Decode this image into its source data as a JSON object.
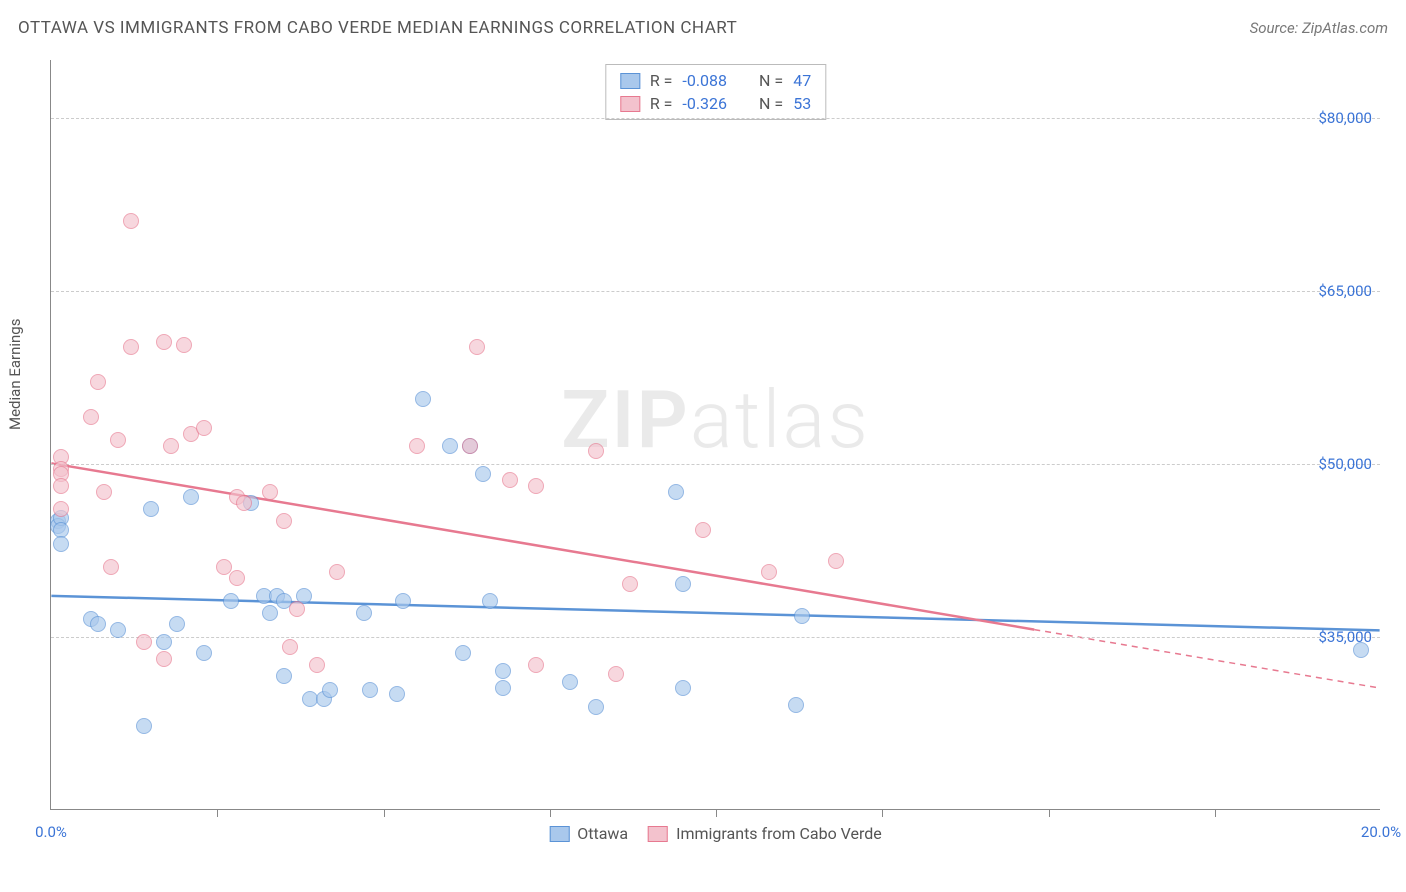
{
  "header": {
    "title": "OTTAWA VS IMMIGRANTS FROM CABO VERDE MEDIAN EARNINGS CORRELATION CHART",
    "source_prefix": "Source: ",
    "source_name": "ZipAtlas.com"
  },
  "chart": {
    "type": "scatter",
    "y_axis_label": "Median Earnings",
    "x_range": [
      0,
      20
    ],
    "y_range": [
      20000,
      85000
    ],
    "y_ticks": [
      {
        "v": 35000,
        "label": "$35,000"
      },
      {
        "v": 50000,
        "label": "$50,000"
      },
      {
        "v": 65000,
        "label": "$65,000"
      },
      {
        "v": 80000,
        "label": "$80,000"
      }
    ],
    "x_ticks_minor": [
      2.5,
      5.0,
      7.5,
      10.0,
      12.5,
      15.0,
      17.5
    ],
    "x_ticks_labeled": [
      {
        "v": 0,
        "label": "0.0%"
      },
      {
        "v": 20,
        "label": "20.0%"
      }
    ],
    "grid_color": "#cccccc",
    "background_color": "#ffffff",
    "series": [
      {
        "name": "Ottawa",
        "fill": "#a9c8ec",
        "stroke": "#5b93d6",
        "trend": {
          "y_at_x0": 38500,
          "y_at_x20": 35500,
          "solid_to_x": 20
        },
        "points": [
          [
            0.1,
            45000
          ],
          [
            0.1,
            44500
          ],
          [
            0.15,
            45200
          ],
          [
            0.15,
            44200
          ],
          [
            0.15,
            43000
          ],
          [
            0.6,
            36500
          ],
          [
            0.7,
            36000
          ],
          [
            1.5,
            46000
          ],
          [
            1.4,
            27200
          ],
          [
            1.0,
            35500
          ],
          [
            1.7,
            34500
          ],
          [
            1.9,
            36000
          ],
          [
            2.3,
            33500
          ],
          [
            2.1,
            47000
          ],
          [
            2.7,
            38000
          ],
          [
            3.0,
            46500
          ],
          [
            3.2,
            38500
          ],
          [
            3.3,
            37000
          ],
          [
            3.4,
            38500
          ],
          [
            3.5,
            38000
          ],
          [
            3.8,
            38500
          ],
          [
            3.9,
            29500
          ],
          [
            3.5,
            31500
          ],
          [
            4.1,
            29500
          ],
          [
            4.2,
            30300
          ],
          [
            4.7,
            37000
          ],
          [
            4.8,
            30300
          ],
          [
            5.2,
            30000
          ],
          [
            5.6,
            55500
          ],
          [
            5.3,
            38000
          ],
          [
            6.0,
            51500
          ],
          [
            6.3,
            51500
          ],
          [
            6.5,
            49000
          ],
          [
            6.6,
            38000
          ],
          [
            6.8,
            32000
          ],
          [
            6.8,
            30500
          ],
          [
            6.2,
            33500
          ],
          [
            7.8,
            31000
          ],
          [
            8.2,
            28800
          ],
          [
            9.4,
            47500
          ],
          [
            9.5,
            39500
          ],
          [
            9.5,
            30500
          ],
          [
            11.2,
            29000
          ],
          [
            11.3,
            36700
          ],
          [
            19.7,
            33800
          ]
        ]
      },
      {
        "name": "Immigrants from Cabo Verde",
        "fill": "#f3c2cd",
        "stroke": "#e77990",
        "trend": {
          "y_at_x0": 50000,
          "y_at_x20": 30500,
          "solid_to_x": 14.8
        },
        "points": [
          [
            0.15,
            50500
          ],
          [
            0.15,
            49500
          ],
          [
            0.15,
            49000
          ],
          [
            0.15,
            48000
          ],
          [
            0.15,
            46000
          ],
          [
            0.6,
            54000
          ],
          [
            0.7,
            57000
          ],
          [
            0.8,
            47500
          ],
          [
            1.0,
            52000
          ],
          [
            1.2,
            71000
          ],
          [
            1.2,
            60000
          ],
          [
            1.4,
            34500
          ],
          [
            0.9,
            41000
          ],
          [
            1.7,
            60500
          ],
          [
            1.8,
            51500
          ],
          [
            2.0,
            60200
          ],
          [
            2.1,
            52500
          ],
          [
            1.7,
            33000
          ],
          [
            2.3,
            53000
          ],
          [
            2.6,
            41000
          ],
          [
            2.8,
            47000
          ],
          [
            2.8,
            40000
          ],
          [
            2.9,
            46500
          ],
          [
            3.3,
            47500
          ],
          [
            3.5,
            45000
          ],
          [
            3.6,
            34000
          ],
          [
            3.7,
            37300
          ],
          [
            4.0,
            32500
          ],
          [
            4.3,
            40500
          ],
          [
            5.5,
            51500
          ],
          [
            6.3,
            51500
          ],
          [
            6.4,
            60000
          ],
          [
            6.9,
            48500
          ],
          [
            7.3,
            48000
          ],
          [
            7.3,
            32500
          ],
          [
            8.2,
            51000
          ],
          [
            8.5,
            31700
          ],
          [
            8.7,
            39500
          ],
          [
            9.8,
            44200
          ],
          [
            10.8,
            40500
          ],
          [
            11.8,
            41500
          ]
        ]
      }
    ],
    "stats": [
      {
        "series": 0,
        "R": "-0.088",
        "N": "47"
      },
      {
        "series": 1,
        "R": "-0.326",
        "N": "53"
      }
    ],
    "stats_labels": {
      "r_prefix": "R = ",
      "n_prefix": "N = "
    },
    "legend": [
      {
        "series": 0,
        "label": "Ottawa"
      },
      {
        "series": 1,
        "label": "Immigrants from Cabo Verde"
      }
    ],
    "watermark": {
      "bold": "ZIP",
      "rest": "atlas"
    }
  }
}
